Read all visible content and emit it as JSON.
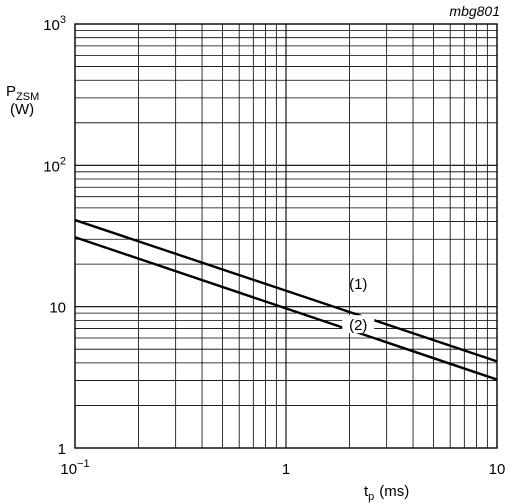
{
  "figure_code": "mbg801",
  "chart_data": {
    "type": "line",
    "x_scale": "log",
    "y_scale": "log",
    "xlim": [
      0.1,
      10
    ],
    "ylim": [
      1,
      1000
    ],
    "grid": true,
    "ylabel": {
      "main": "P",
      "sub": "ZSM",
      "unit": "(W)"
    },
    "xlabel": {
      "main": "t",
      "sub": "p",
      "unit": "(ms)"
    },
    "x_ticks": [
      {
        "value": 0.1,
        "base": "10",
        "exp": "−1"
      },
      {
        "value": 1,
        "base": "1",
        "exp": ""
      },
      {
        "value": 10,
        "base": "10",
        "exp": ""
      }
    ],
    "y_ticks": [
      {
        "value": 1,
        "base": "1",
        "exp": ""
      },
      {
        "value": 10,
        "base": "10",
        "exp": ""
      },
      {
        "value": 100,
        "base": "10",
        "exp": "2"
      },
      {
        "value": 1000,
        "base": "10",
        "exp": "3"
      }
    ],
    "series": [
      {
        "name": "(1)",
        "x": [
          0.1,
          10
        ],
        "y": [
          41,
          4.1
        ],
        "label_at": [
          2.2,
          14.5
        ]
      },
      {
        "name": "(2)",
        "x": [
          0.1,
          10
        ],
        "y": [
          31,
          3.05
        ],
        "label_at": [
          2.2,
          7.4
        ]
      }
    ]
  }
}
